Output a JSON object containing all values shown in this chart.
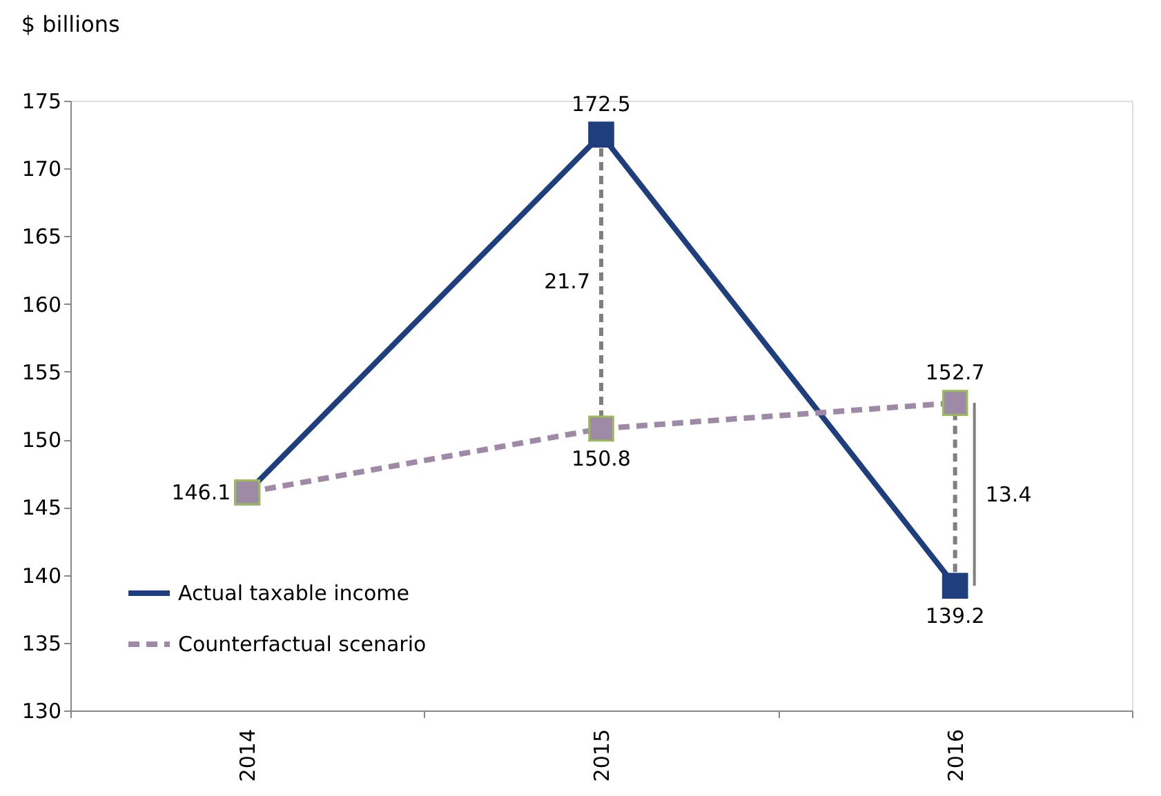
{
  "chart_data": {
    "type": "line",
    "ylabel": "$ billions",
    "categories": [
      "2014",
      "2015",
      "2016"
    ],
    "series": [
      {
        "name": "Actual taxable income",
        "color": "#1f3e7e",
        "values": [
          146.1,
          172.5,
          139.2
        ],
        "line_style": "solid",
        "value_labels": [
          "146.1",
          "172.5",
          "139.2"
        ]
      },
      {
        "name": "Counterfactual scenario",
        "color": "#9e8aa6",
        "values": [
          146.1,
          150.8,
          152.7
        ],
        "line_style": "dashed",
        "value_labels": [
          null,
          "150.8",
          "152.7"
        ]
      }
    ],
    "ylim": [
      130,
      175
    ],
    "yticks": [
      130,
      135,
      140,
      145,
      150,
      155,
      160,
      165,
      170,
      175
    ],
    "annotations": [
      "21.7",
      "13.4"
    ],
    "marker": "square",
    "grid": false,
    "legend": "bottom left"
  }
}
